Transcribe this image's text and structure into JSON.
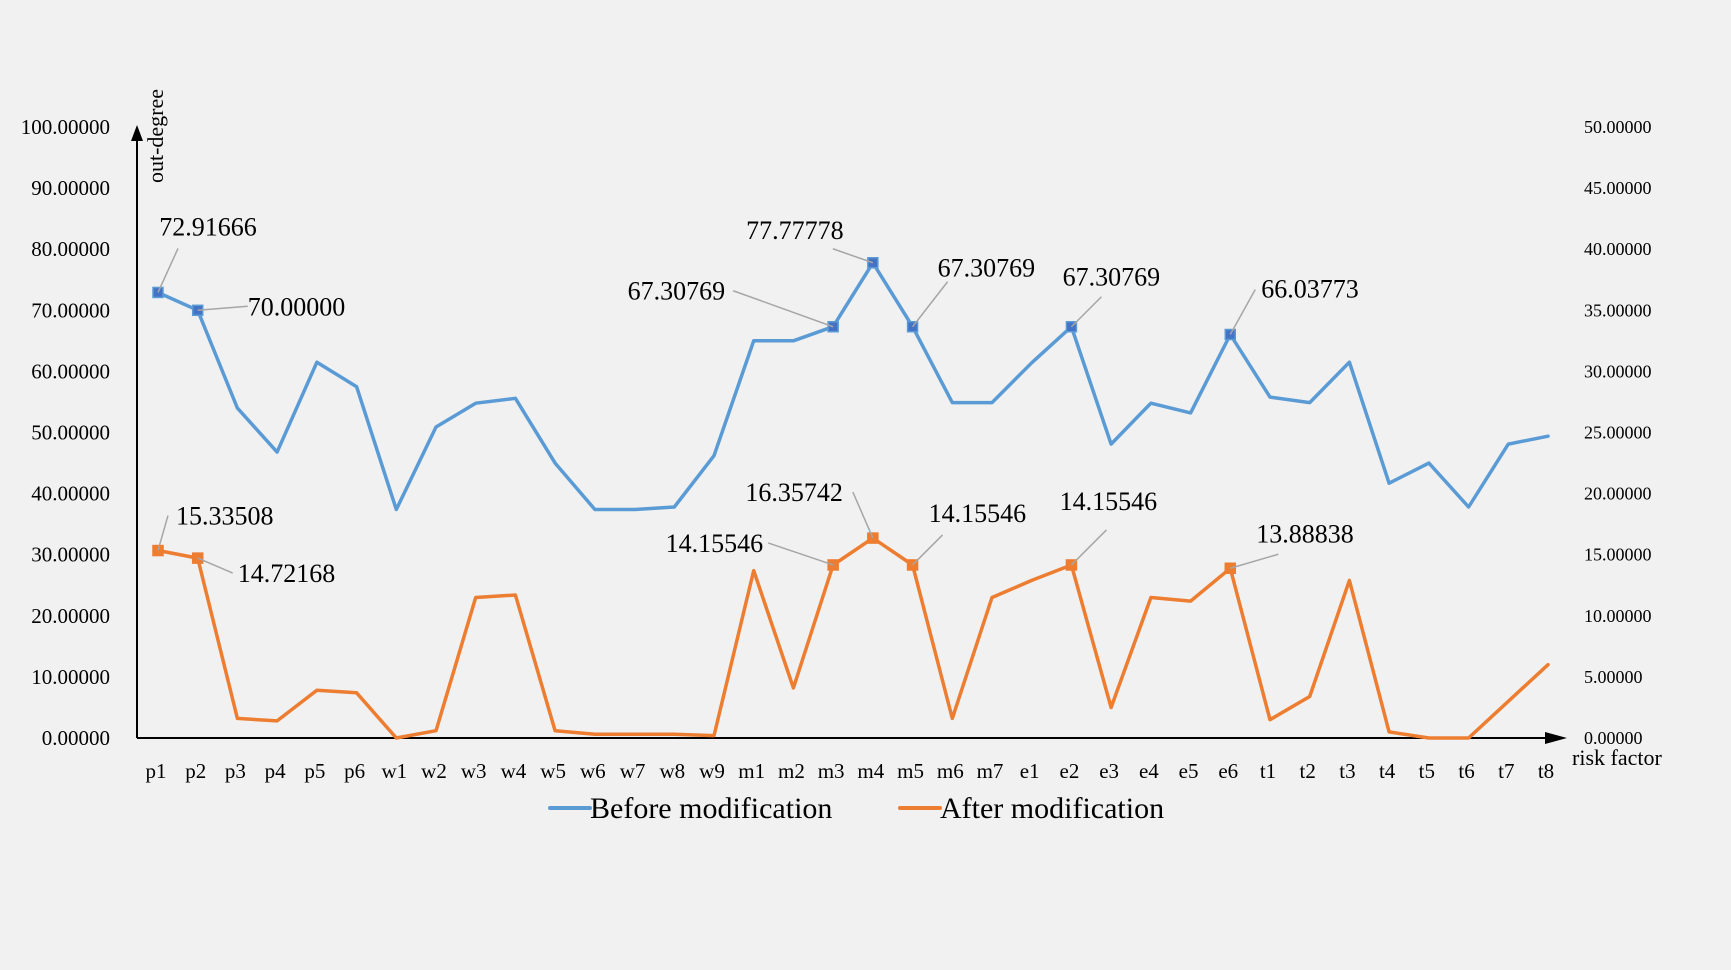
{
  "chart_data": {
    "type": "line",
    "title": "",
    "xlabel": "risk factor",
    "ylabel": "out-degree",
    "categories": [
      "p1",
      "p2",
      "p3",
      "p4",
      "p5",
      "p6",
      "w1",
      "w2",
      "w3",
      "w4",
      "w5",
      "w6",
      "w7",
      "w8",
      "w9",
      "m1",
      "m2",
      "m3",
      "m4",
      "m5",
      "m6",
      "m7",
      "e1",
      "e2",
      "e3",
      "e4",
      "e5",
      "e6",
      "t1",
      "t2",
      "t3",
      "t4",
      "t5",
      "t6",
      "t7",
      "t8"
    ],
    "ylim": [
      0,
      100
    ],
    "y2lim": [
      0,
      50
    ],
    "yticks": [
      "0.00000",
      "10.00000",
      "20.00000",
      "30.00000",
      "40.00000",
      "50.00000",
      "60.00000",
      "70.00000",
      "80.00000",
      "90.00000",
      "100.00000"
    ],
    "y2ticks": [
      "0.00000",
      "5.00000",
      "10.00000",
      "15.00000",
      "20.00000",
      "25.00000",
      "30.00000",
      "35.00000",
      "40.00000",
      "45.00000",
      "50.00000"
    ],
    "series": [
      {
        "name": "Before modification",
        "axis": "left",
        "color": "#5b9bd5",
        "marker_color": "#4472c4",
        "values": [
          72.92,
          70.0,
          54.0,
          46.8,
          61.5,
          57.5,
          37.4,
          50.9,
          54.8,
          55.6,
          45.0,
          37.4,
          37.4,
          37.8,
          46.2,
          65.0,
          65.0,
          67.31,
          77.78,
          67.31,
          54.9,
          54.9,
          61.4,
          67.31,
          48.1,
          54.8,
          53.2,
          66.04,
          55.8,
          54.9,
          61.5,
          41.7,
          45.0,
          37.8,
          48.1,
          49.4
        ],
        "annotations": [
          {
            "index": 0,
            "text": "72.91666"
          },
          {
            "index": 1,
            "text": "70.00000"
          },
          {
            "index": 17,
            "text": "67.30769"
          },
          {
            "index": 18,
            "text": "77.77778"
          },
          {
            "index": 19,
            "text": "67.30769"
          },
          {
            "index": 23,
            "text": "67.30769"
          },
          {
            "index": 27,
            "text": "66.03773"
          }
        ]
      },
      {
        "name": "After modification",
        "axis": "right",
        "color": "#ed7d31",
        "marker_color": "#ed7d31",
        "values": [
          15.34,
          14.72,
          1.6,
          1.4,
          3.9,
          3.7,
          0.0,
          0.6,
          11.5,
          11.7,
          0.6,
          0.3,
          0.3,
          0.3,
          0.2,
          13.7,
          4.1,
          14.16,
          16.36,
          14.16,
          1.6,
          11.5,
          12.9,
          14.16,
          2.5,
          11.5,
          11.2,
          13.89,
          1.5,
          3.4,
          12.9,
          0.5,
          0.0,
          0.0,
          3.0,
          6.0
        ],
        "annotations": [
          {
            "index": 0,
            "text": "15.33508"
          },
          {
            "index": 1,
            "text": "14.72168"
          },
          {
            "index": 17,
            "text": "14.15546"
          },
          {
            "index": 18,
            "text": "16.35742"
          },
          {
            "index": 19,
            "text": "14.15546"
          },
          {
            "index": 23,
            "text": "14.15546"
          },
          {
            "index": 27,
            "text": "13.88838"
          }
        ]
      }
    ],
    "legend": "bottom"
  }
}
